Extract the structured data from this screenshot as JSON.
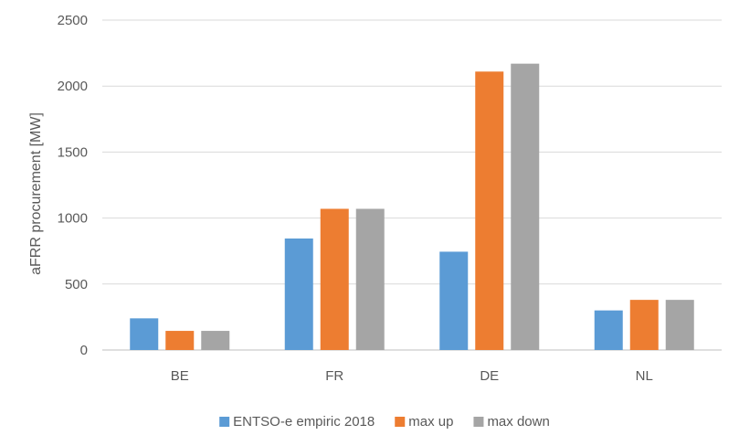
{
  "chart_data": {
    "type": "bar",
    "title": "",
    "xlabel": "",
    "ylabel": "aFRR procurement [MW]",
    "ylim": [
      0,
      2500
    ],
    "yticks": [
      0,
      500,
      1000,
      1500,
      2000,
      2500
    ],
    "grid": true,
    "legend_position": "bottom",
    "categories": [
      "BE",
      "FR",
      "DE",
      "NL"
    ],
    "series": [
      {
        "name": "ENTSO-e empiric 2018",
        "color": "#5b9bd5",
        "values": [
          240,
          845,
          745,
          300
        ]
      },
      {
        "name": "max up",
        "color": "#ed7d31",
        "values": [
          145,
          1070,
          2110,
          380
        ]
      },
      {
        "name": "max down",
        "color": "#a5a5a5",
        "values": [
          145,
          1070,
          2170,
          380
        ]
      }
    ]
  }
}
